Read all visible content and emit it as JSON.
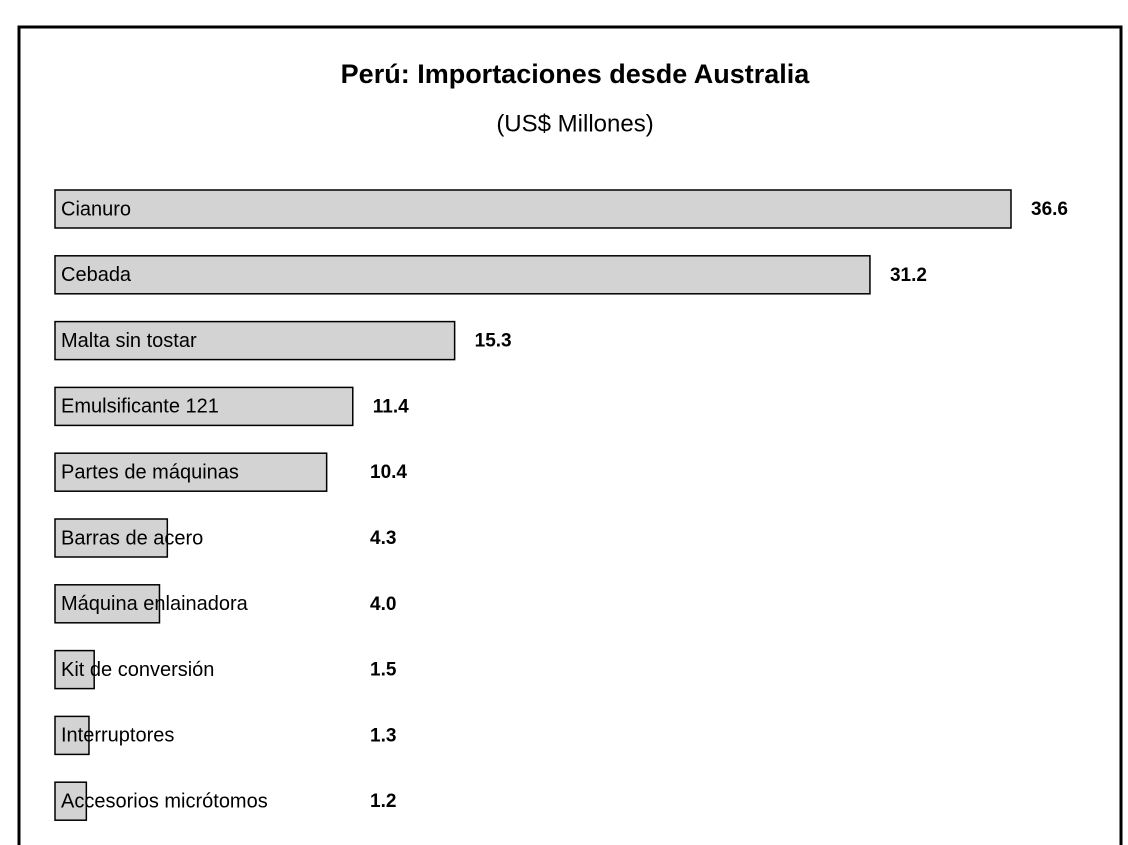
{
  "chart_data": {
    "type": "bar",
    "orientation": "horizontal",
    "title": "Perú: Importaciones desde Australia",
    "subtitle": "(US$ Millones)",
    "categories": [
      "Cianuro",
      "Cebada",
      "Malta sin tostar",
      "Emulsificante 121",
      "Partes de máquinas",
      "Barras de acero",
      "Máquina enlainadora",
      "Kit de conversión",
      "Interruptores",
      "Accesorios micrótomos"
    ],
    "values": [
      36.6,
      31.2,
      15.3,
      11.4,
      10.4,
      4.3,
      4.0,
      1.5,
      1.3,
      1.2
    ],
    "value_labels": [
      "36.6",
      "31.2",
      "15.3",
      "11.4",
      "10.4",
      "4.3",
      "4.0",
      "1.5",
      "1.3",
      "1.2"
    ],
    "color": "#d3d3d3"
  }
}
